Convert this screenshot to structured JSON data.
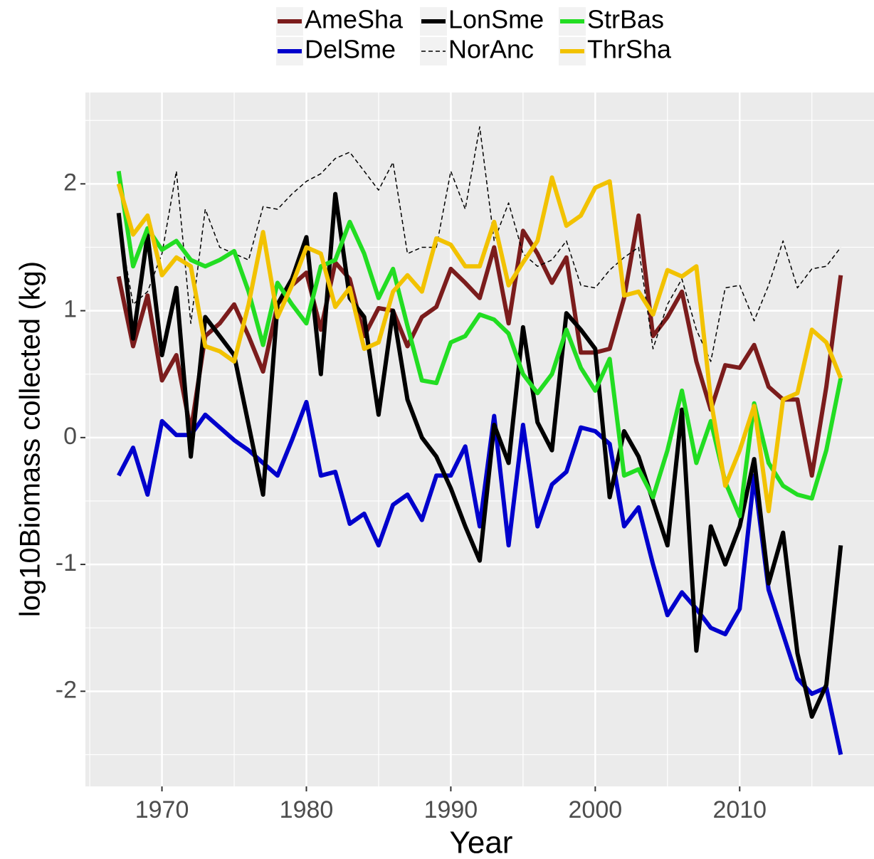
{
  "chart_data": {
    "type": "line",
    "x_label": "Year",
    "y_label": "log10Biomass collected (kg)",
    "xlim": [
      1964.7,
      2019.3
    ],
    "ylim": [
      -2.75,
      2.72
    ],
    "xticks": [
      1970,
      1980,
      1990,
      2000,
      2010
    ],
    "yticks": [
      -2,
      -1,
      0,
      1,
      2
    ],
    "grid": true,
    "legend_position": "top",
    "x": [
      1967,
      1968,
      1969,
      1970,
      1971,
      1972,
      1973,
      1974,
      1975,
      1976,
      1977,
      1978,
      1979,
      1980,
      1981,
      1982,
      1983,
      1984,
      1985,
      1986,
      1987,
      1988,
      1989,
      1990,
      1991,
      1992,
      1993,
      1994,
      1995,
      1996,
      1997,
      1998,
      1999,
      2000,
      2001,
      2002,
      2003,
      2004,
      2005,
      2006,
      2007,
      2008,
      2009,
      2010,
      2011,
      2012,
      2013,
      2014,
      2015,
      2016,
      2017
    ],
    "series": [
      {
        "name": "AmeSha",
        "color": "#7b1c1c",
        "linetype": "solid",
        "values": [
          1.27,
          0.72,
          1.12,
          0.45,
          0.65,
          0.05,
          0.8,
          0.9,
          1.05,
          0.8,
          0.52,
          1.05,
          1.2,
          1.3,
          0.85,
          1.38,
          1.25,
          0.8,
          1.02,
          1.0,
          0.72,
          0.95,
          1.03,
          1.33,
          1.22,
          1.1,
          1.5,
          0.9,
          1.63,
          1.45,
          1.22,
          1.42,
          0.67,
          0.67,
          0.7,
          1.1,
          1.75,
          0.8,
          0.95,
          1.15,
          0.6,
          0.22,
          0.57,
          0.55,
          0.73,
          0.4,
          0.3,
          0.3,
          -0.3,
          0.4,
          1.28
        ]
      },
      {
        "name": "DelSme",
        "color": "#0000cc",
        "linetype": "solid",
        "values": [
          -0.3,
          -0.08,
          -0.45,
          0.13,
          0.02,
          0.02,
          0.18,
          0.08,
          -0.02,
          -0.1,
          -0.2,
          -0.3,
          -0.02,
          0.28,
          -0.3,
          -0.27,
          -0.68,
          -0.6,
          -0.85,
          -0.53,
          -0.45,
          -0.65,
          -0.3,
          -0.3,
          -0.07,
          -0.7,
          0.17,
          -0.85,
          0.1,
          -0.7,
          -0.37,
          -0.27,
          0.08,
          0.05,
          -0.05,
          -0.7,
          -0.55,
          -1.0,
          -1.4,
          -1.22,
          -1.35,
          -1.5,
          -1.55,
          -1.35,
          -0.3,
          -1.2,
          -1.55,
          -1.9,
          -2.02,
          -1.97,
          -2.5
        ]
      },
      {
        "name": "LonSme",
        "color": "#000000",
        "linetype": "solid",
        "values": [
          1.77,
          0.78,
          1.6,
          0.65,
          1.18,
          -0.15,
          0.95,
          0.8,
          0.65,
          0.1,
          -0.45,
          1.05,
          1.25,
          1.58,
          0.5,
          1.92,
          1.1,
          0.95,
          0.18,
          1.0,
          0.3,
          0.0,
          -0.15,
          -0.4,
          -0.7,
          -0.97,
          0.1,
          -0.2,
          0.87,
          0.12,
          -0.1,
          0.98,
          0.85,
          0.7,
          -0.47,
          0.05,
          -0.15,
          -0.5,
          -0.85,
          0.22,
          -1.68,
          -0.7,
          -1.0,
          -0.7,
          -0.17,
          -1.15,
          -0.75,
          -1.7,
          -2.2,
          -1.95,
          -0.85
        ]
      },
      {
        "name": "NorAnc",
        "color": "#000000",
        "linetype": "dashed",
        "values": [
          1.7,
          1.05,
          1.15,
          1.45,
          2.1,
          0.9,
          1.8,
          1.5,
          1.45,
          1.4,
          1.82,
          1.8,
          1.92,
          2.02,
          2.08,
          2.2,
          2.25,
          2.1,
          1.95,
          2.17,
          1.45,
          1.5,
          1.5,
          2.1,
          1.8,
          2.45,
          1.55,
          1.85,
          1.45,
          1.35,
          1.4,
          1.55,
          1.2,
          1.18,
          1.32,
          1.42,
          1.5,
          0.7,
          1.05,
          1.25,
          0.85,
          0.6,
          1.18,
          1.2,
          0.92,
          1.2,
          1.55,
          1.18,
          1.33,
          1.35,
          1.5
        ]
      },
      {
        "name": "StrBas",
        "color": "#22dd22",
        "linetype": "solid",
        "values": [
          2.1,
          1.35,
          1.65,
          1.48,
          1.55,
          1.4,
          1.35,
          1.4,
          1.47,
          1.15,
          0.73,
          1.22,
          1.05,
          0.9,
          1.35,
          1.4,
          1.7,
          1.45,
          1.1,
          1.33,
          0.88,
          0.45,
          0.43,
          0.75,
          0.8,
          0.97,
          0.93,
          0.82,
          0.5,
          0.35,
          0.5,
          0.85,
          0.55,
          0.37,
          0.62,
          -0.3,
          -0.25,
          -0.47,
          -0.1,
          0.37,
          -0.2,
          0.13,
          -0.35,
          -0.62,
          0.27,
          -0.2,
          -0.38,
          -0.45,
          -0.48,
          -0.1,
          0.47
        ]
      },
      {
        "name": "ThrSha",
        "color": "#f2c200",
        "linetype": "solid",
        "values": [
          2.0,
          1.6,
          1.75,
          1.28,
          1.42,
          1.35,
          0.72,
          0.68,
          0.6,
          1.05,
          1.62,
          0.95,
          1.2,
          1.5,
          1.45,
          1.03,
          1.18,
          0.7,
          0.75,
          1.15,
          1.28,
          1.15,
          1.57,
          1.52,
          1.35,
          1.35,
          1.7,
          1.2,
          1.38,
          1.55,
          2.05,
          1.67,
          1.75,
          1.97,
          2.02,
          1.12,
          1.15,
          0.97,
          1.32,
          1.27,
          1.35,
          0.3,
          -0.38,
          -0.1,
          0.25,
          -0.58,
          0.3,
          0.35,
          0.85,
          0.75,
          0.47
        ]
      }
    ]
  }
}
